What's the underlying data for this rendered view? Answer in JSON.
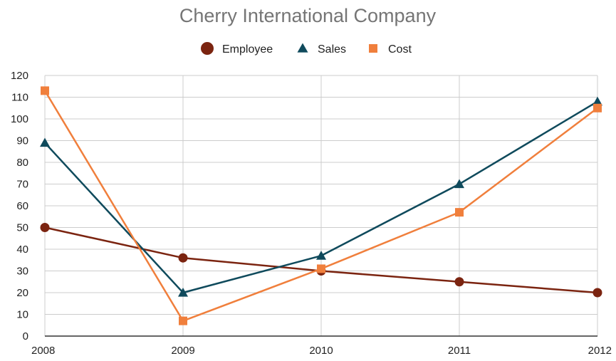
{
  "chart_data": {
    "type": "line",
    "title": "Cherry International Company",
    "xlabel": "",
    "ylabel": "",
    "categories": [
      "2008",
      "2009",
      "2010",
      "2011",
      "2012"
    ],
    "ylim": [
      0,
      120
    ],
    "yticks": [
      0,
      10,
      20,
      30,
      40,
      50,
      60,
      70,
      80,
      90,
      100,
      110,
      120
    ],
    "grid": true,
    "legend_position": "top",
    "series": [
      {
        "name": "Employee",
        "marker": "circle",
        "color": "#7b2410",
        "values": [
          50,
          36,
          30,
          25,
          20
        ]
      },
      {
        "name": "Sales",
        "marker": "triangle",
        "color": "#0f4a5c",
        "values": [
          89,
          20,
          37,
          70,
          108
        ]
      },
      {
        "name": "Cost",
        "marker": "square",
        "color": "#f07f3c",
        "values": [
          113,
          7,
          31,
          57,
          105
        ]
      }
    ]
  }
}
